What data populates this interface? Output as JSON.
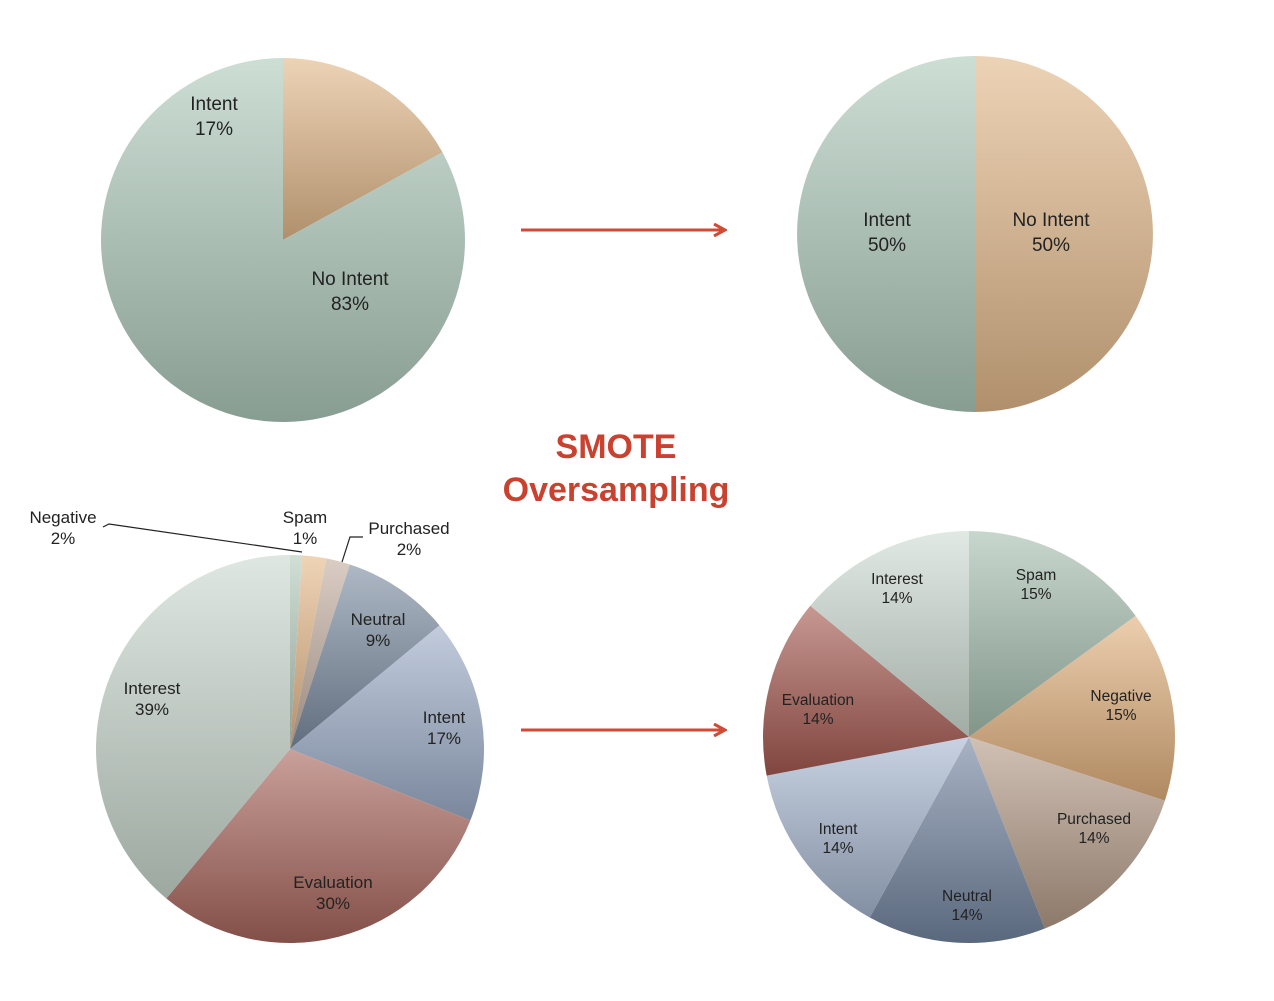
{
  "annotation": {
    "line1": "SMOTE",
    "line2": "Oversampling",
    "color": "#c9412f"
  },
  "arrow_color": "#d04a35",
  "chart_data": [
    {
      "type": "pie",
      "title": "",
      "slices": [
        {
          "label": "Intent",
          "value_label": "17%",
          "value": 17,
          "color": "#e2b88a"
        },
        {
          "label": "No Intent",
          "value_label": "83%",
          "value": 83,
          "color": "#aec9bb"
        }
      ]
    },
    {
      "type": "pie",
      "title": "",
      "slices": [
        {
          "label": "Intent",
          "value_label": "50%",
          "value": 50,
          "color": "#e2b88a"
        },
        {
          "label": "No Intent",
          "value_label": "50%",
          "value": 50,
          "color": "#aec9bb"
        }
      ]
    },
    {
      "type": "pie",
      "title": "",
      "slices": [
        {
          "label": "Spam",
          "value_label": "1%",
          "value": 1,
          "color": "#b5cbbd"
        },
        {
          "label": "Negative",
          "value_label": "2%",
          "value": 2,
          "color": "#e5b98a"
        },
        {
          "label": "Purchased",
          "value_label": "2%",
          "value": 2,
          "color": "#c4aea0"
        },
        {
          "label": "Neutral",
          "value_label": "9%",
          "value": 9,
          "color": "#7c8da2"
        },
        {
          "label": "Intent",
          "value_label": "17%",
          "value": 17,
          "color": "#9cadc8"
        },
        {
          "label": "Evaluation",
          "value_label": "30%",
          "value": 30,
          "color": "#a8655c"
        },
        {
          "label": "Interest",
          "value_label": "39%",
          "value": 39,
          "color": "#c9d8cf"
        }
      ]
    },
    {
      "type": "pie",
      "title": "",
      "slices": [
        {
          "label": "Spam",
          "value_label": "15%",
          "value": 15,
          "color": "#a6bfb0"
        },
        {
          "label": "Negative",
          "value_label": "15%",
          "value": 15,
          "color": "#e0b07c"
        },
        {
          "label": "Purchased",
          "value_label": "14%",
          "value": 14,
          "color": "#b49b88"
        },
        {
          "label": "Neutral",
          "value_label": "14%",
          "value": 14,
          "color": "#7385a0"
        },
        {
          "label": "Intent",
          "value_label": "14%",
          "value": 14,
          "color": "#a7b7d0"
        },
        {
          "label": "Evaluation",
          "value_label": "14%",
          "value": 14,
          "color": "#a4594f"
        },
        {
          "label": "Interest",
          "value_label": "14%",
          "value": 14,
          "color": "#cfdcd4"
        }
      ]
    }
  ]
}
